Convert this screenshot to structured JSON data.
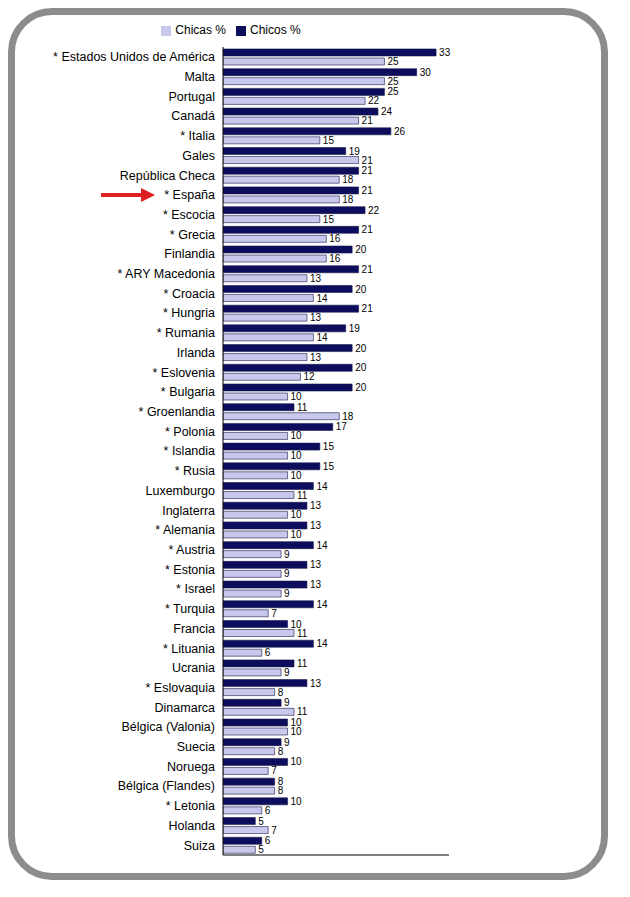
{
  "chart_data": {
    "type": "bar",
    "orientation": "horizontal",
    "data_labels": true,
    "tick_labels": "y",
    "legend": "top",
    "xlim": [
      0,
      35
    ],
    "categories": [
      "* Estados Unidos de América",
      "Malta",
      "Portugal",
      "Canadá",
      "* Italia",
      "Gales",
      "República Checa",
      "* España",
      "* Escocia",
      "* Grecia",
      "Finlandia",
      "* ARY Macedonia",
      "* Croacia",
      "* Hungria",
      "* Rumania",
      "Irlanda",
      "* Eslovenia",
      "* Bulgaria",
      "* Groenlandia",
      "* Polonia",
      "* Islandia",
      "* Rusia",
      "Luxemburgo",
      "Inglaterra",
      "* Alemania",
      "* Austria",
      "* Estonia",
      "* Israel",
      "* Turquia",
      "Francia",
      "* Lituania",
      "Ucrania",
      "* Eslovaquia",
      "Dinamarca",
      "Bélgica (Valonia)",
      "Suecia",
      "Noruega",
      "Bélgica (Flandes)",
      "* Letonia",
      "Holanda",
      "Suiza"
    ],
    "series": [
      {
        "name": "Chicos %",
        "color": "#0d0d5e",
        "values": [
          33,
          30,
          25,
          24,
          26,
          19,
          21,
          21,
          22,
          21,
          20,
          21,
          20,
          21,
          19,
          20,
          20,
          20,
          11,
          17,
          15,
          15,
          14,
          13,
          13,
          14,
          13,
          13,
          14,
          10,
          14,
          11,
          13,
          9,
          10,
          9,
          10,
          8,
          10,
          5,
          6
        ]
      },
      {
        "name": "Chicas %",
        "color": "#c8c8ec",
        "values": [
          25,
          25,
          22,
          21,
          15,
          21,
          18,
          18,
          15,
          16,
          16,
          13,
          14,
          13,
          14,
          13,
          12,
          10,
          18,
          10,
          10,
          10,
          11,
          10,
          10,
          9,
          9,
          9,
          7,
          11,
          6,
          9,
          8,
          11,
          10,
          8,
          7,
          8,
          6,
          7,
          5
        ]
      }
    ]
  }
}
